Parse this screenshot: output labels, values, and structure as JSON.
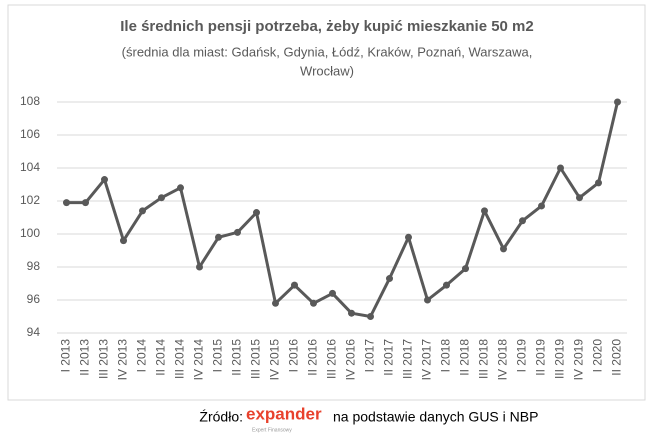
{
  "chart_data": {
    "type": "line",
    "title": "Ile średnich pensji potrzeba, żeby kupić mieszkanie 50 m2",
    "subtitle_lines": [
      "(średnia dla miast: Gdańsk, Gdynia, Łódź, Kraków, Poznań, Warszawa,",
      "Wrocław)"
    ],
    "categories": [
      "I 2013",
      "II 2013",
      "III 2013",
      "IV 2013",
      "I 2014",
      "II 2014",
      "III 2014",
      "IV 2014",
      "I 2015",
      "II 2015",
      "III 2015",
      "IV 2015",
      "I 2016",
      "II 2016",
      "III 2016",
      "IV 2016",
      "I 2017",
      "II 2017",
      "III 2017",
      "IV 2017",
      "I 2018",
      "II 2018",
      "III 2018",
      "IV 2018",
      "I 2019",
      "II 2019",
      "III 2019",
      "IV 2019",
      "I 2020",
      "II 2020"
    ],
    "values": [
      101.9,
      101.9,
      103.3,
      99.6,
      101.4,
      102.2,
      102.8,
      98.0,
      99.8,
      100.1,
      101.3,
      95.8,
      96.9,
      95.8,
      96.4,
      95.2,
      95.0,
      97.3,
      99.8,
      96.0,
      96.9,
      97.9,
      101.4,
      99.1,
      100.8,
      101.7,
      104.0,
      102.2,
      103.1,
      108.0
    ],
    "color": "#595959",
    "ylim": [
      94,
      108
    ],
    "yticks": [
      94,
      96,
      98,
      100,
      102,
      104,
      106,
      108
    ],
    "grid": true,
    "source_prefix": "Źródło:",
    "source_logo": "expander",
    "source_logo_tagline": "Expert Finansowy",
    "source_suffix": "na podstawie danych GUS i NBP"
  }
}
